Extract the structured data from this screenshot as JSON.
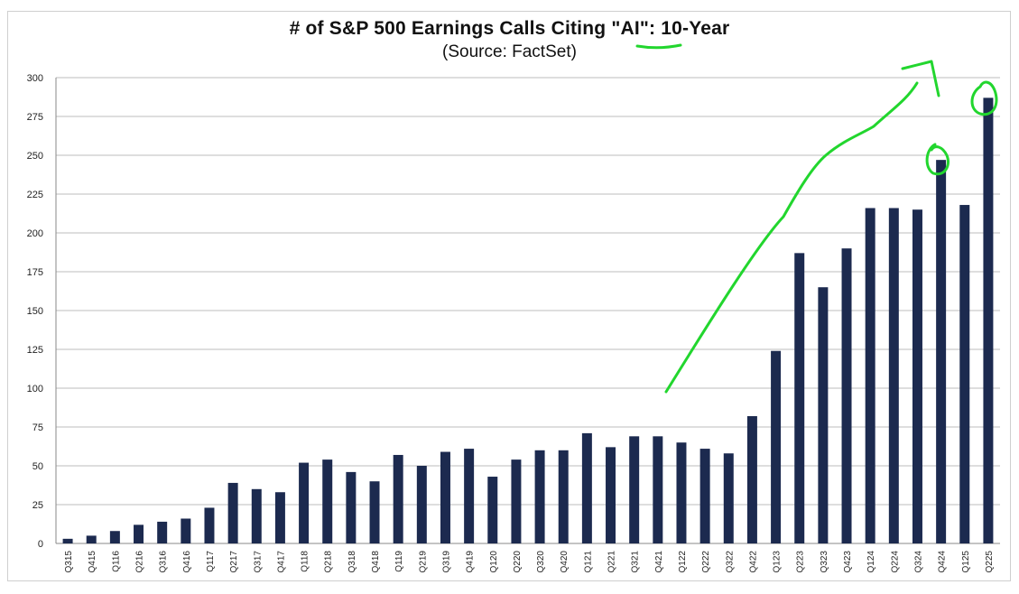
{
  "chart_data": {
    "type": "bar",
    "title_prefix": "# of S&P 500 Earnings Calls Citing ",
    "title_highlight": "\"AI\"",
    "title_suffix": ": 10-Year",
    "subtitle": "(Source: FactSet)",
    "xlabel": "",
    "ylabel": "",
    "ylim": [
      0,
      300
    ],
    "yticks": [
      0,
      25,
      50,
      75,
      100,
      125,
      150,
      175,
      200,
      225,
      250,
      275,
      300
    ],
    "grid": true,
    "categories": [
      "Q315",
      "Q415",
      "Q116",
      "Q216",
      "Q316",
      "Q416",
      "Q117",
      "Q217",
      "Q317",
      "Q417",
      "Q118",
      "Q218",
      "Q318",
      "Q418",
      "Q119",
      "Q219",
      "Q319",
      "Q419",
      "Q120",
      "Q220",
      "Q320",
      "Q420",
      "Q121",
      "Q221",
      "Q321",
      "Q421",
      "Q122",
      "Q222",
      "Q322",
      "Q422",
      "Q123",
      "Q223",
      "Q323",
      "Q423",
      "Q124",
      "Q224",
      "Q324",
      "Q424",
      "Q125",
      "Q225"
    ],
    "values": [
      3,
      5,
      8,
      12,
      14,
      16,
      23,
      39,
      35,
      33,
      52,
      54,
      46,
      40,
      57,
      50,
      59,
      61,
      43,
      54,
      60,
      60,
      71,
      62,
      69,
      69,
      65,
      61,
      58,
      82,
      124,
      187,
      165,
      190,
      216,
      216,
      215,
      247,
      218,
      287
    ],
    "bar_color": "#1c2a4f",
    "annotation_color": "#22d62e"
  }
}
